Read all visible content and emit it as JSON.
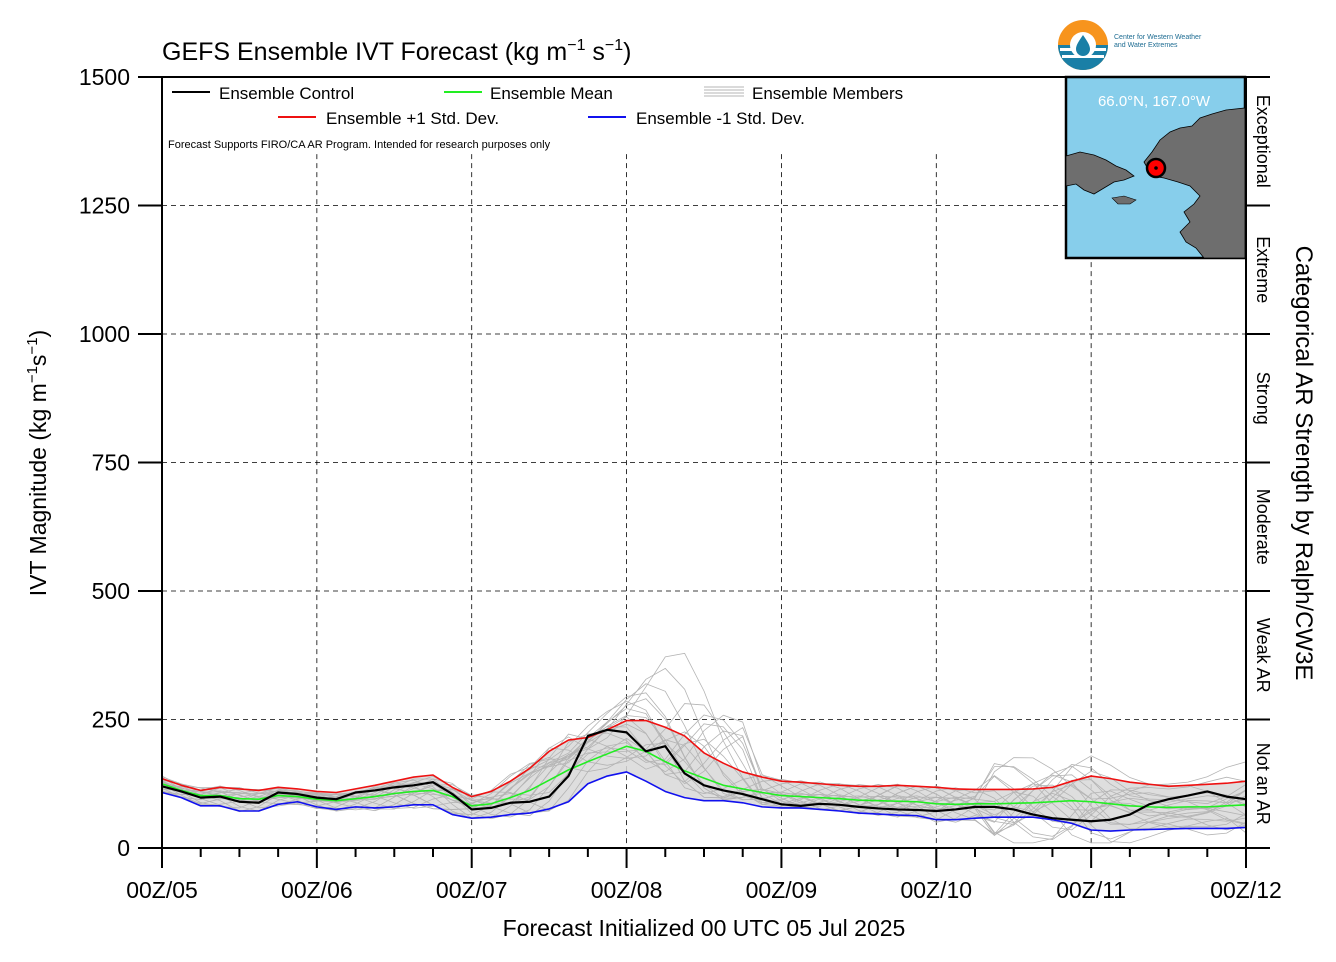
{
  "title": "GEFS Ensemble IVT Forecast (kg m",
  "title_exp1": "−1",
  "title_mid": " s",
  "title_exp2": "−1",
  "title_end": ")",
  "ylabel": "IVT Magnitude (kg m",
  "ylabel_exp1": "−1",
  "ylabel_mid": "s",
  "ylabel_exp2": "−1",
  "ylabel_end": ")",
  "xlabel": "Forecast Initialized 00 UTC 05 Jul 2025",
  "right_axis_title": "Categorical AR Strength by Ralph/CW3E",
  "note": "Forecast Supports FIRO/CA AR Program. Intended for research purposes only",
  "logo": {
    "line1": "Center for Western Weather",
    "line2": "and Water Extremes"
  },
  "inset": {
    "location_label": "66.0°N, 167.0°W"
  },
  "legend": {
    "control": "Ensemble Control",
    "mean": "Ensemble Mean",
    "members": "Ensemble Members",
    "plus": "Ensemble +1 Std. Dev.",
    "minus": "Ensemble -1 Std. Dev."
  },
  "colors": {
    "control": "#000000",
    "mean": "#22ee22",
    "members": "#b4b4b4",
    "spread_fill": "#d8d8d8",
    "plus": "#ee1111",
    "minus": "#1111ee",
    "inset_water": "#87ceeb",
    "inset_land": "#6e6e6e",
    "marker": "#ff0000"
  },
  "chart_data": {
    "type": "line",
    "title": "GEFS Ensemble IVT Forecast (kg m−1 s−1)",
    "xlabel": "Forecast Initialized 00 UTC 05 Jul 2025",
    "ylabel": "IVT Magnitude (kg m−1s−1)",
    "xlim": [
      0,
      168
    ],
    "ylim": [
      0,
      1500
    ],
    "grid": true,
    "legend_position": "top-left",
    "x_ticks": [
      {
        "hour": 0,
        "label": "00Z/05"
      },
      {
        "hour": 24,
        "label": "00Z/06"
      },
      {
        "hour": 48,
        "label": "00Z/07"
      },
      {
        "hour": 72,
        "label": "00Z/08"
      },
      {
        "hour": 96,
        "label": "00Z/09"
      },
      {
        "hour": 120,
        "label": "00Z/10"
      },
      {
        "hour": 144,
        "label": "00Z/11"
      },
      {
        "hour": 168,
        "label": "00Z/12"
      }
    ],
    "y_ticks": [
      0,
      250,
      500,
      750,
      1000,
      1250,
      1500
    ],
    "categories_right": [
      {
        "label": "Not an AR",
        "from": 0,
        "to": 250
      },
      {
        "label": "Weak AR",
        "from": 250,
        "to": 500
      },
      {
        "label": "Moderate",
        "from": 500,
        "to": 750
      },
      {
        "label": "Strong",
        "from": 750,
        "to": 1000
      },
      {
        "label": "Extreme",
        "from": 1000,
        "to": 1250
      },
      {
        "label": "Exceptional",
        "from": 1250,
        "to": 1500
      }
    ],
    "x": [
      0,
      3,
      6,
      9,
      12,
      15,
      18,
      21,
      24,
      27,
      30,
      33,
      36,
      39,
      42,
      45,
      48,
      51,
      54,
      57,
      60,
      63,
      66,
      69,
      72,
      75,
      78,
      81,
      84,
      87,
      90,
      93,
      96,
      99,
      102,
      105,
      108,
      111,
      114,
      117,
      120,
      123,
      126,
      129,
      132,
      135,
      138,
      141,
      144,
      147,
      150,
      153,
      156,
      159,
      162,
      165,
      168
    ],
    "series": [
      {
        "name": "Ensemble Control",
        "color_key": "control",
        "values": [
          120,
          110,
          98,
          100,
          90,
          88,
          108,
          105,
          98,
          95,
          108,
          112,
          118,
          122,
          128,
          105,
          75,
          78,
          88,
          90,
          100,
          140,
          218,
          230,
          225,
          188,
          198,
          145,
          122,
          112,
          105,
          95,
          85,
          82,
          86,
          84,
          80,
          77,
          75,
          74,
          72,
          75,
          80,
          80,
          75,
          65,
          58,
          55,
          52,
          55,
          65,
          85,
          95,
          102,
          110,
          100,
          95
        ]
      },
      {
        "name": "Ensemble Mean",
        "color_key": "mean",
        "values": [
          125,
          112,
          102,
          102,
          96,
          95,
          102,
          100,
          95,
          92,
          96,
          100,
          106,
          110,
          112,
          100,
          82,
          86,
          98,
          112,
          132,
          152,
          168,
          183,
          198,
          188,
          168,
          150,
          136,
          122,
          115,
          108,
          102,
          100,
          98,
          96,
          93,
          92,
          91,
          90,
          86,
          85,
          86,
          86,
          87,
          88,
          90,
          92,
          90,
          86,
          82,
          80,
          79,
          80,
          80,
          82,
          84
        ]
      },
      {
        "name": "Ensemble +1 Std. Dev.",
        "color_key": "plus",
        "values": [
          135,
          122,
          112,
          118,
          115,
          112,
          118,
          115,
          110,
          108,
          115,
          122,
          130,
          138,
          142,
          118,
          100,
          110,
          130,
          155,
          188,
          210,
          215,
          230,
          248,
          248,
          235,
          218,
          185,
          165,
          148,
          138,
          130,
          128,
          125,
          122,
          120,
          120,
          122,
          120,
          118,
          115,
          114,
          114,
          114,
          115,
          118,
          130,
          140,
          135,
          128,
          124,
          120,
          122,
          124,
          126,
          130
        ]
      },
      {
        "name": "Ensemble -1 Std. Dev.",
        "color_key": "minus",
        "values": [
          108,
          98,
          82,
          82,
          72,
          72,
          85,
          90,
          80,
          75,
          80,
          78,
          80,
          84,
          84,
          65,
          58,
          60,
          65,
          68,
          76,
          90,
          125,
          140,
          148,
          130,
          110,
          98,
          92,
          92,
          88,
          80,
          78,
          78,
          75,
          72,
          68,
          66,
          64,
          63,
          55,
          55,
          58,
          60,
          60,
          60,
          55,
          48,
          35,
          33,
          35,
          36,
          37,
          38,
          38,
          38,
          40
        ]
      }
    ]
  }
}
